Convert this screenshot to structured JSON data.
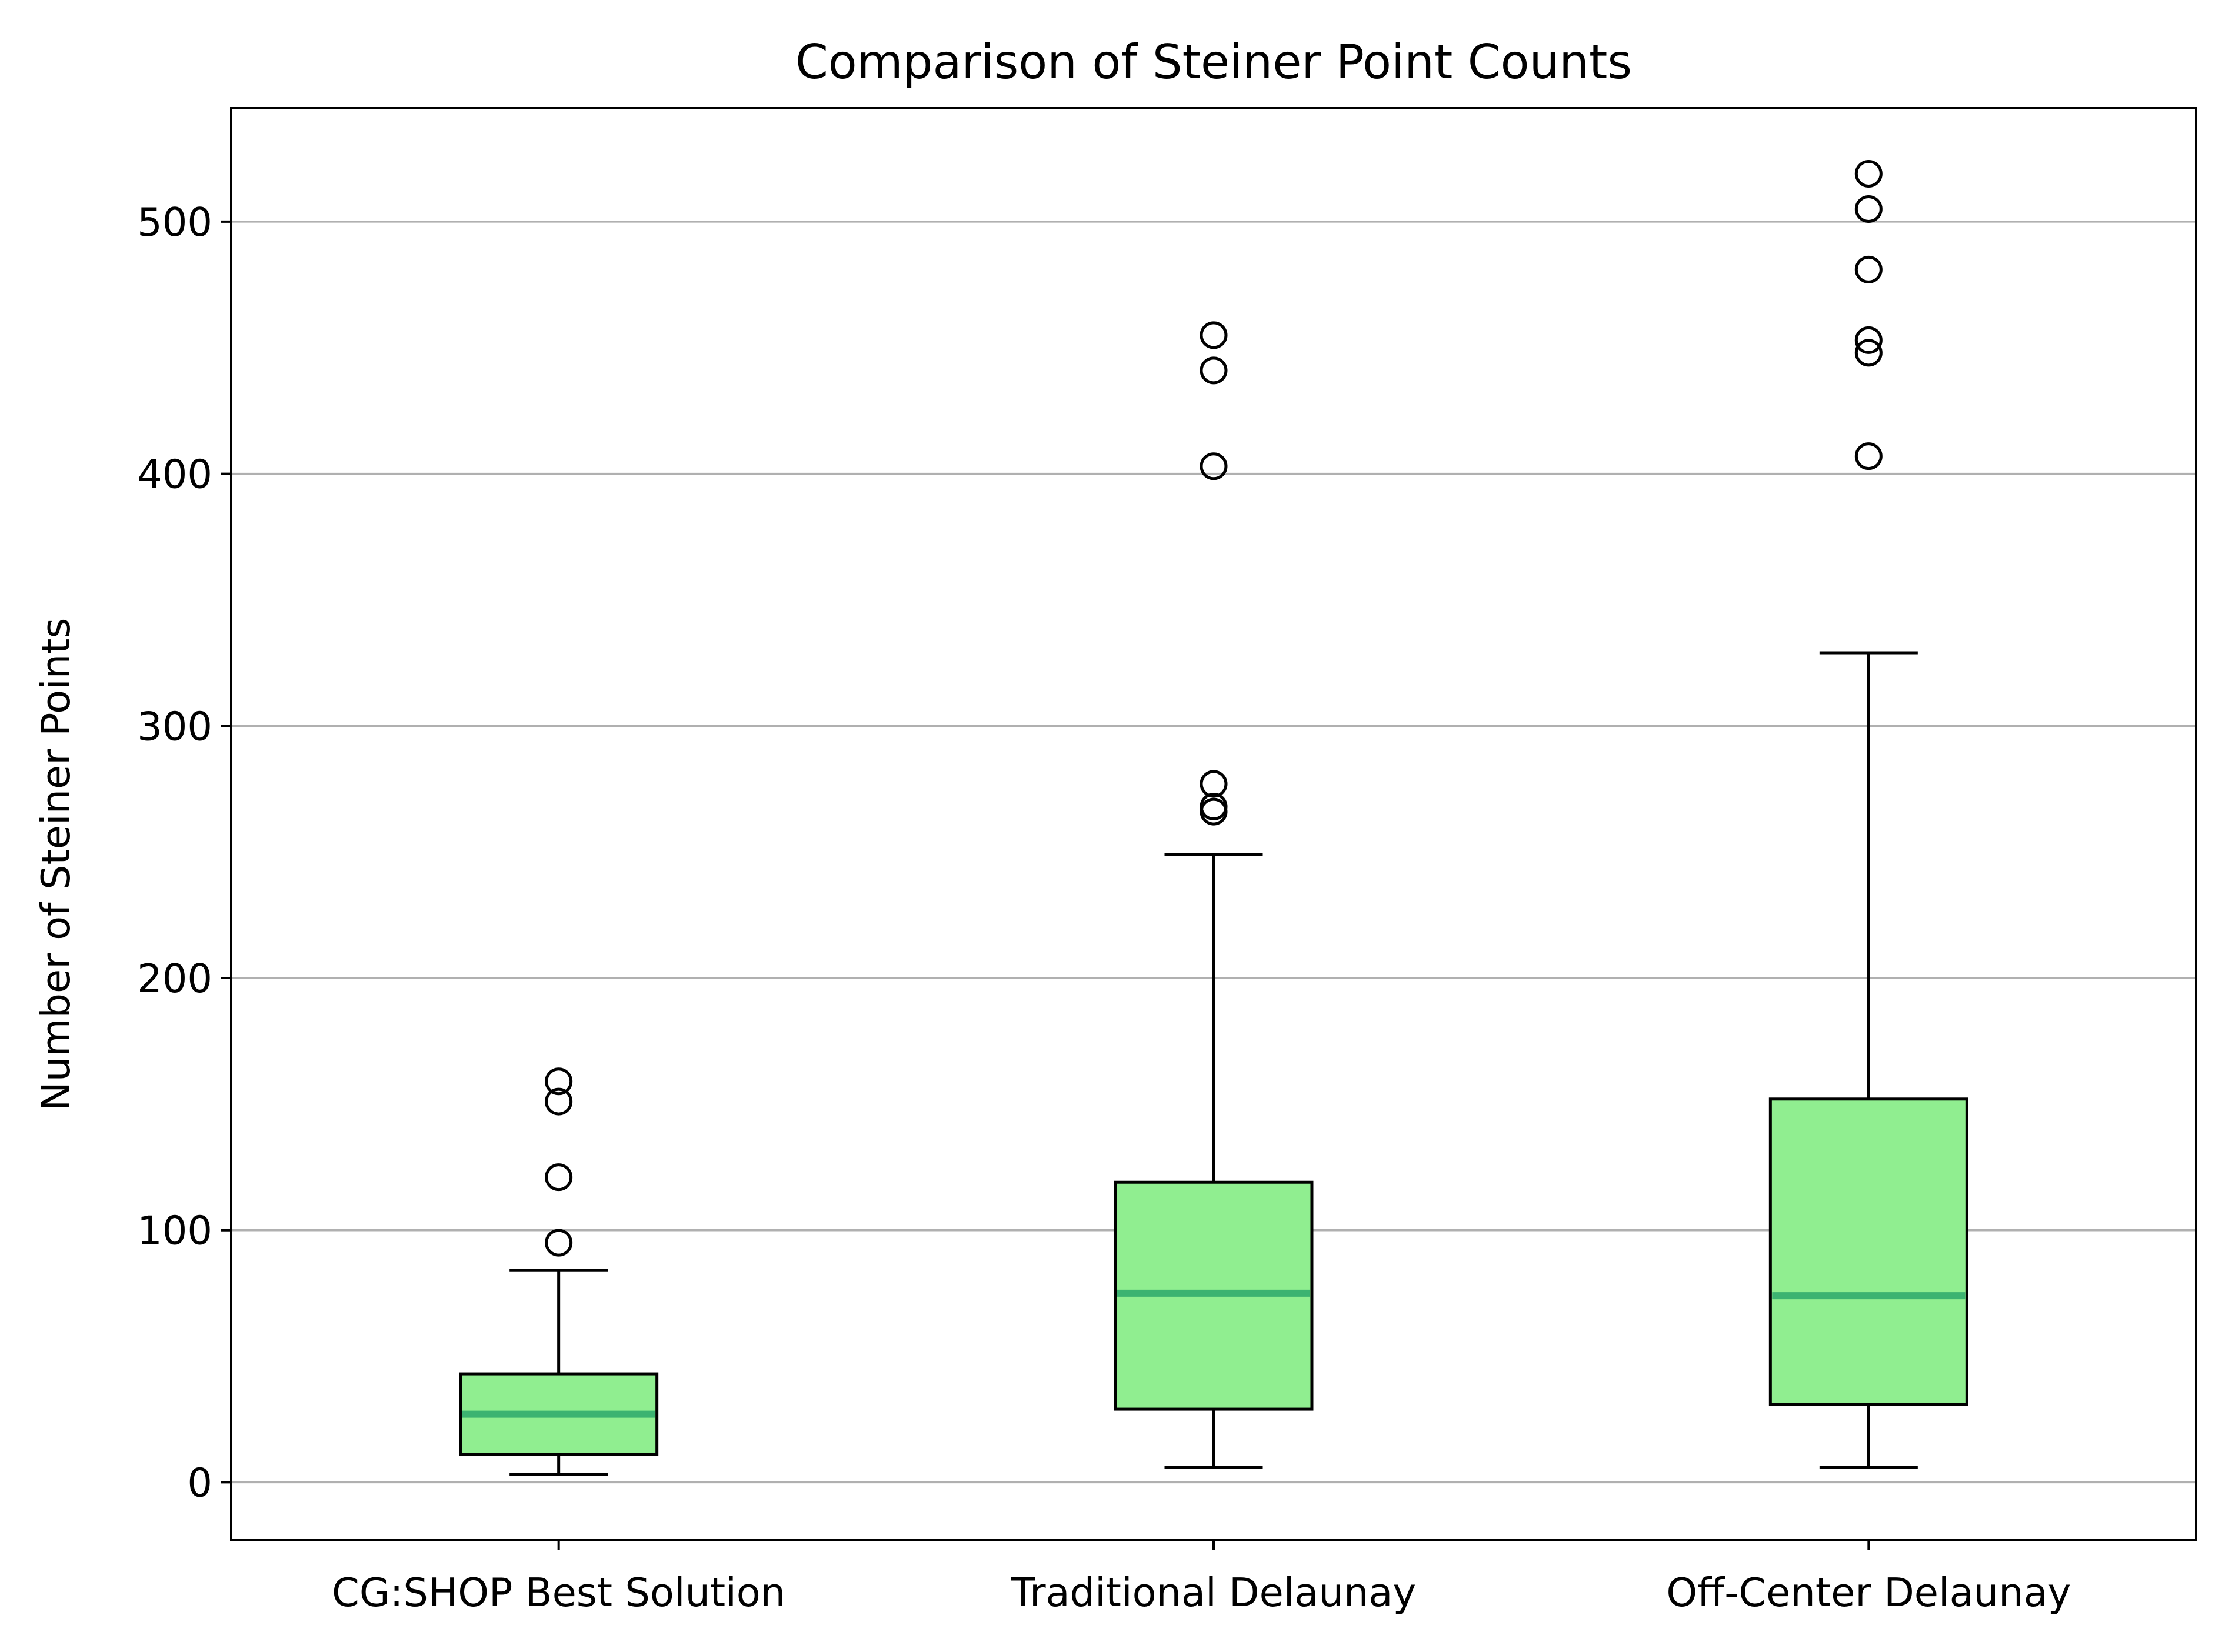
{
  "chart_data": {
    "type": "box",
    "title": "Comparison of Steiner Point Counts",
    "xlabel": "",
    "ylabel": "Number of Steiner Points",
    "ylim": [
      -23,
      545
    ],
    "yticks": [
      0,
      100,
      200,
      300,
      400,
      500
    ],
    "grid": {
      "y": true,
      "x": false
    },
    "colors": {
      "box_fill": "#90ee90",
      "median": "#3cb371",
      "edge": "#000000",
      "grid": "#b0b0b0"
    },
    "categories": [
      "CG:SHOP Best Solution",
      "Traditional Delaunay",
      "Off-Center Delaunay"
    ],
    "boxes": [
      {
        "whisker_low": 3,
        "q1": 11,
        "median": 27,
        "q3": 43,
        "whisker_high": 84,
        "outliers": [
          95,
          121,
          151,
          159
        ]
      },
      {
        "whisker_low": 6,
        "q1": 29,
        "median": 75,
        "q3": 119,
        "whisker_high": 249,
        "outliers": [
          266,
          268,
          277,
          403,
          441,
          455
        ]
      },
      {
        "whisker_low": 6,
        "q1": 31,
        "median": 74,
        "q3": 152,
        "whisker_high": 329,
        "outliers": [
          407,
          448,
          453,
          481,
          505,
          519
        ]
      }
    ]
  }
}
